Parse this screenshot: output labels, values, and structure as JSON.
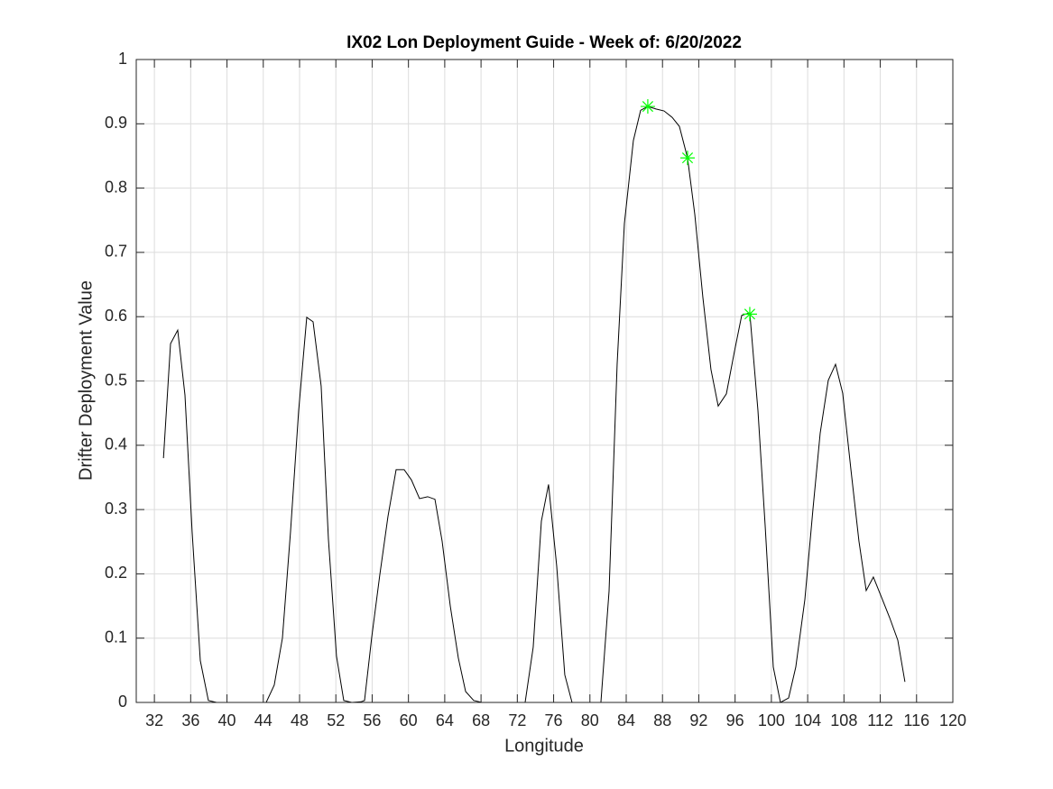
{
  "chart_data": {
    "type": "line",
    "title": "IX02 Lon Deployment Guide - Week of: 6/20/2022",
    "x_label": "Longitude",
    "y_label": "Drifter Deployment Value",
    "xlim": [
      30,
      120
    ],
    "ylim": [
      0,
      1
    ],
    "xticks": [
      32,
      36,
      40,
      44,
      48,
      52,
      56,
      60,
      64,
      68,
      72,
      76,
      80,
      84,
      88,
      92,
      96,
      100,
      104,
      108,
      112,
      116,
      120
    ],
    "yticks": [
      0,
      0.1,
      0.2,
      0.3,
      0.4,
      0.5,
      0.6,
      0.7,
      0.8,
      0.9,
      1
    ],
    "grid": true,
    "series": [
      {
        "color": "#000000",
        "marker": "none",
        "x": [
          33.0,
          33.78,
          34.57,
          35.37,
          36.16,
          37.06,
          37.95,
          38.85,
          44.32,
          45.21,
          46.11,
          47.0,
          47.9,
          48.79,
          49.49,
          50.38,
          51.18,
          52.07,
          52.87,
          53.76,
          54.76,
          55.16,
          55.95,
          56.85,
          57.74,
          58.64,
          59.53,
          60.33,
          61.22,
          62.12,
          62.92,
          63.71,
          64.61,
          65.5,
          66.3,
          67.19,
          68.09,
          72.86,
          73.75,
          74.65,
          75.44,
          76.34,
          77.23,
          78.03,
          81.21,
          82.11,
          83.0,
          83.8,
          84.79,
          85.59,
          86.38,
          87.28,
          88.17,
          89.07,
          89.86,
          90.76,
          91.56,
          92.45,
          93.34,
          94.14,
          95.04,
          95.93,
          96.73,
          97.62,
          98.52,
          99.31,
          100.21,
          101.0,
          101.9,
          102.69,
          103.69,
          104.58,
          105.38,
          106.27,
          107.07,
          107.86,
          108.76,
          109.65,
          110.45,
          111.24,
          112.24,
          113.03,
          113.93,
          114.72
        ],
        "values": [
          0.38,
          0.558,
          0.579,
          0.478,
          0.265,
          0.065,
          0.003,
          0,
          0,
          0.027,
          0.1,
          0.265,
          0.454,
          0.599,
          0.592,
          0.492,
          0.254,
          0.072,
          0.003,
          0,
          0.001,
          0.003,
          0.101,
          0.199,
          0.289,
          0.362,
          0.362,
          0.346,
          0.317,
          0.32,
          0.316,
          0.251,
          0.15,
          0.069,
          0.017,
          0.003,
          0,
          0,
          0.086,
          0.282,
          0.339,
          0.212,
          0.043,
          0,
          0,
          0.173,
          0.526,
          0.745,
          0.874,
          0.921,
          0.927,
          0.923,
          0.92,
          0.91,
          0.896,
          0.847,
          0.759,
          0.63,
          0.518,
          0.461,
          0.48,
          0.546,
          0.602,
          0.606,
          0.454,
          0.276,
          0.055,
          0,
          0.007,
          0.055,
          0.16,
          0.3,
          0.419,
          0.501,
          0.526,
          0.481,
          0.363,
          0.251,
          0.174,
          0.195,
          0.16,
          0.132,
          0.097,
          0.032
        ]
      },
      {
        "color": "#00ff00",
        "marker": "star",
        "x": [
          86.38,
          90.76,
          97.62
        ],
        "values": [
          0.927,
          0.847,
          0.604
        ]
      }
    ]
  }
}
